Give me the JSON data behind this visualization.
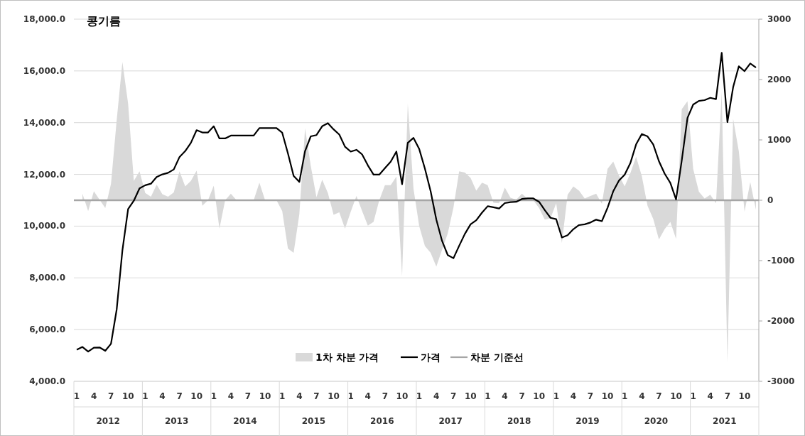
{
  "chart_data": {
    "type": "line",
    "title": "콩기름",
    "categories": [
      "1",
      null,
      null,
      "4",
      null,
      null,
      "7",
      null,
      null,
      "10",
      null,
      null,
      "1",
      null,
      null,
      "4",
      null,
      null,
      "7",
      null,
      null,
      "10",
      null,
      null,
      "1",
      null,
      null,
      "4",
      null,
      null,
      "7",
      null,
      null,
      "10",
      null,
      null,
      "1",
      null,
      null,
      "4",
      null,
      null,
      "7",
      null,
      null,
      "10",
      null,
      null,
      "1",
      null,
      null,
      "4",
      null,
      null,
      "7",
      null,
      null,
      "10",
      null,
      null,
      "1",
      null,
      null,
      "4",
      null,
      null,
      "7",
      null,
      null,
      "10",
      null,
      null,
      "1",
      null,
      null,
      "4",
      null,
      null,
      "7",
      null,
      null,
      "10",
      null,
      null,
      "1",
      null,
      null,
      "4",
      null,
      null,
      "7",
      null,
      null,
      "10",
      null,
      null,
      "1",
      null,
      null,
      "4",
      null,
      null,
      "7",
      null,
      null,
      "10",
      null,
      null,
      "1",
      null,
      null,
      "4",
      null,
      null,
      "7",
      null,
      null,
      "10",
      null,
      null
    ],
    "annotations": [
      "2012",
      "2013",
      "2014",
      "2015",
      "2016",
      "2017",
      "2018",
      "2019",
      "2020",
      "2021"
    ],
    "series": [
      {
        "name": "1차 차분 가격",
        "type": "area",
        "axis": "y2",
        "color": "#d9d9d9",
        "values": [
          null,
          110,
          -180,
          150,
          10,
          -130,
          270,
          1330,
          2290,
          1600,
          320,
          480,
          120,
          60,
          260,
          100,
          60,
          130,
          480,
          230,
          320,
          490,
          -90,
          0,
          240,
          -470,
          0,
          110,
          0,
          0,
          0,
          0,
          290,
          0,
          0,
          0,
          -180,
          -800,
          -870,
          -230,
          1190,
          570,
          50,
          340,
          120,
          -240,
          -200,
          -470,
          -190,
          70,
          -180,
          -420,
          -360,
          0,
          250,
          250,
          390,
          -1260,
          1600,
          190,
          -430,
          -760,
          -870,
          -1100,
          -820,
          -550,
          -120,
          480,
          460,
          370,
          160,
          290,
          250,
          -40,
          -50,
          210,
          40,
          10,
          110,
          20,
          0,
          -130,
          -320,
          -300,
          -50,
          -710,
          90,
          230,
          160,
          30,
          70,
          110,
          -60,
          520,
          640,
          410,
          230,
          450,
          720,
          400,
          -90,
          -310,
          -650,
          -480,
          -360,
          -640,
          1510,
          1640,
          520,
          140,
          30,
          90,
          -50,
          1790,
          -2680,
          1350,
          810,
          -190,
          300,
          -160
        ]
      },
      {
        "name": "가격",
        "color": "#000000",
        "values": [
          5220,
          5330,
          5150,
          5300,
          5310,
          5180,
          5450,
          6780,
          9060,
          10660,
          10980,
          11460,
          11580,
          11640,
          11900,
          12000,
          12060,
          12190,
          12670,
          12900,
          13220,
          13710,
          13620,
          13620,
          13860,
          13390,
          13390,
          13500,
          13500,
          13500,
          13500,
          13500,
          13790,
          13790,
          13790,
          13790,
          13610,
          12810,
          11940,
          11710,
          12900,
          13470,
          13520,
          13860,
          13980,
          13740,
          13540,
          13070,
          12880,
          12950,
          12770,
          12350,
          11990,
          11990,
          12240,
          12490,
          12880,
          11620,
          13220,
          13410,
          12980,
          12220,
          11350,
          10250,
          9430,
          8880,
          8760,
          9240,
          9700,
          10070,
          10230,
          10520,
          10770,
          10730,
          10680,
          10890,
          10930,
          10940,
          11050,
          11070,
          11070,
          10940,
          10620,
          10320,
          10270,
          9560,
          9650,
          9880,
          10040,
          10070,
          10140,
          10250,
          10190,
          10710,
          11350,
          11760,
          11990,
          12440,
          13160,
          13560,
          13470,
          13160,
          12510,
          12030,
          11670,
          11030,
          12540,
          14180,
          14700,
          14840,
          14870,
          14960,
          14910,
          16700,
          14020,
          15370,
          16180,
          15990,
          16290,
          16130
        ]
      }
    ],
    "ref_lines": [
      {
        "axis": "y2",
        "value": 0,
        "label": "차분 기준선",
        "color": "#a6a6a6"
      }
    ],
    "ylim": [
      4000,
      18000
    ],
    "yticks": [
      {
        "value": 4000,
        "label": "4,000.0"
      },
      {
        "value": 6000,
        "label": "6,000.0"
      },
      {
        "value": 8000,
        "label": "8,000.0"
      },
      {
        "value": 10000,
        "label": "10,000.0"
      },
      {
        "value": 12000,
        "label": "12,000.0"
      },
      {
        "value": 14000,
        "label": "14,000.0"
      },
      {
        "value": 16000,
        "label": "16,000.0"
      },
      {
        "value": 18000,
        "label": "18,000.0"
      }
    ],
    "y2lim": [
      -3000,
      3000
    ],
    "y2ticks": [
      -3000,
      -2000,
      -1000,
      0,
      1000,
      2000,
      3000
    ],
    "grid": "y",
    "legend": "bottom"
  }
}
